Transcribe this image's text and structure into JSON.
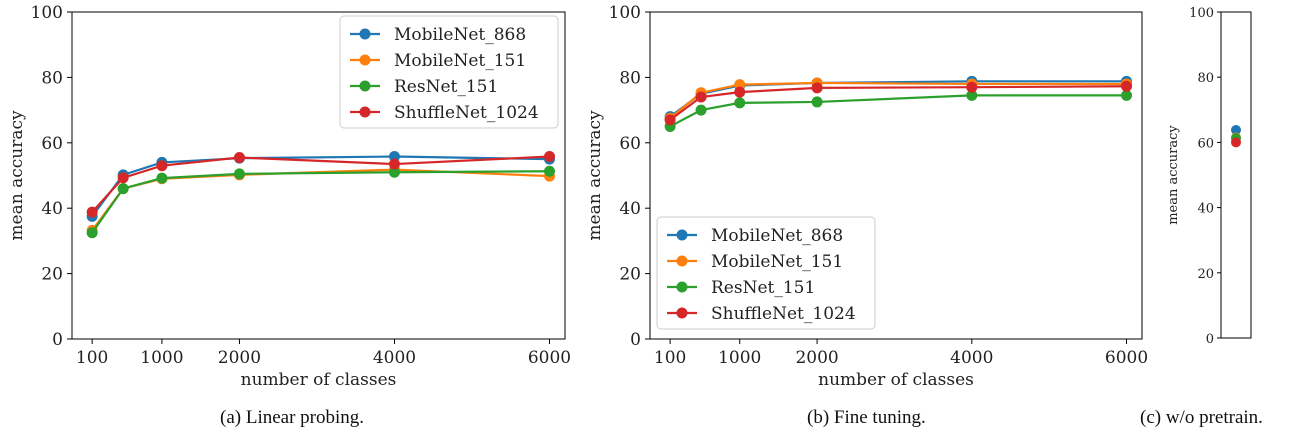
{
  "chart_data": [
    {
      "type": "line",
      "xlabel": "number of classes",
      "ylabel": "mean accuracy",
      "x": [
        100,
        500,
        1000,
        2000,
        4000,
        6000
      ],
      "xticks": [
        "100",
        "1000",
        "2000",
        "4000",
        "6000"
      ],
      "xtick_values": [
        100,
        1000,
        2000,
        4000,
        6000
      ],
      "yticks": [
        "0",
        "20",
        "40",
        "60",
        "80",
        "100"
      ],
      "ylim": [
        0,
        100
      ],
      "xlim": [
        -160,
        6200
      ],
      "legend_position": "top-right",
      "series": [
        {
          "name": "MobileNet_868",
          "color": "#1f77b4",
          "values": [
            37.5,
            50.2,
            54.0,
            55.3,
            55.8,
            55.0
          ]
        },
        {
          "name": "MobileNet_151",
          "color": "#ff7f0e",
          "values": [
            33.2,
            46.0,
            49.0,
            50.2,
            51.8,
            49.8
          ]
        },
        {
          "name": "ResNet_151",
          "color": "#2ca02c",
          "values": [
            32.5,
            46.0,
            49.2,
            50.5,
            51.0,
            51.3
          ]
        },
        {
          "name": "ShuffleNet_1024",
          "color": "#d62728",
          "values": [
            38.8,
            49.3,
            53.0,
            55.5,
            53.5,
            55.8
          ]
        }
      ],
      "caption": "(a)   Linear probing."
    },
    {
      "type": "line",
      "xlabel": "number of classes",
      "ylabel": "mean accuracy",
      "x": [
        100,
        500,
        1000,
        2000,
        4000,
        6000
      ],
      "xticks": [
        "100",
        "1000",
        "2000",
        "4000",
        "6000"
      ],
      "xtick_values": [
        100,
        1000,
        2000,
        4000,
        6000
      ],
      "yticks": [
        "0",
        "20",
        "40",
        "60",
        "80",
        "100"
      ],
      "ylim": [
        0,
        100
      ],
      "xlim": [
        -160,
        6200
      ],
      "legend_position": "lower-left",
      "series": [
        {
          "name": "MobileNet_868",
          "color": "#1f77b4",
          "values": [
            68.0,
            75.0,
            77.5,
            78.3,
            78.8,
            78.8
          ]
        },
        {
          "name": "MobileNet_151",
          "color": "#ff7f0e",
          "values": [
            67.5,
            75.3,
            77.8,
            78.3,
            78.0,
            78.0
          ]
        },
        {
          "name": "ResNet_151",
          "color": "#2ca02c",
          "values": [
            65.0,
            70.0,
            72.2,
            72.5,
            74.5,
            74.5
          ]
        },
        {
          "name": "ShuffleNet_1024",
          "color": "#d62728",
          "values": [
            67.0,
            74.0,
            75.5,
            76.8,
            77.0,
            77.3
          ]
        }
      ],
      "caption": "(b) Fine tuning."
    },
    {
      "type": "scatter",
      "ylabel": "mean accuracy",
      "yticks": [
        "0",
        "20",
        "40",
        "60",
        "80",
        "100"
      ],
      "ylim": [
        0,
        100
      ],
      "series": [
        {
          "name": "MobileNet_868",
          "color": "#1f77b4",
          "values": [
            63.8
          ]
        },
        {
          "name": "MobileNet_151",
          "color": "#ff7f0e",
          "values": [
            61.5
          ]
        },
        {
          "name": "ResNet_151",
          "color": "#2ca02c",
          "values": [
            61.3
          ]
        },
        {
          "name": "ShuffleNet_1024",
          "color": "#d62728",
          "values": [
            60.0
          ]
        }
      ],
      "caption": "(c) w/o pretrain."
    }
  ]
}
